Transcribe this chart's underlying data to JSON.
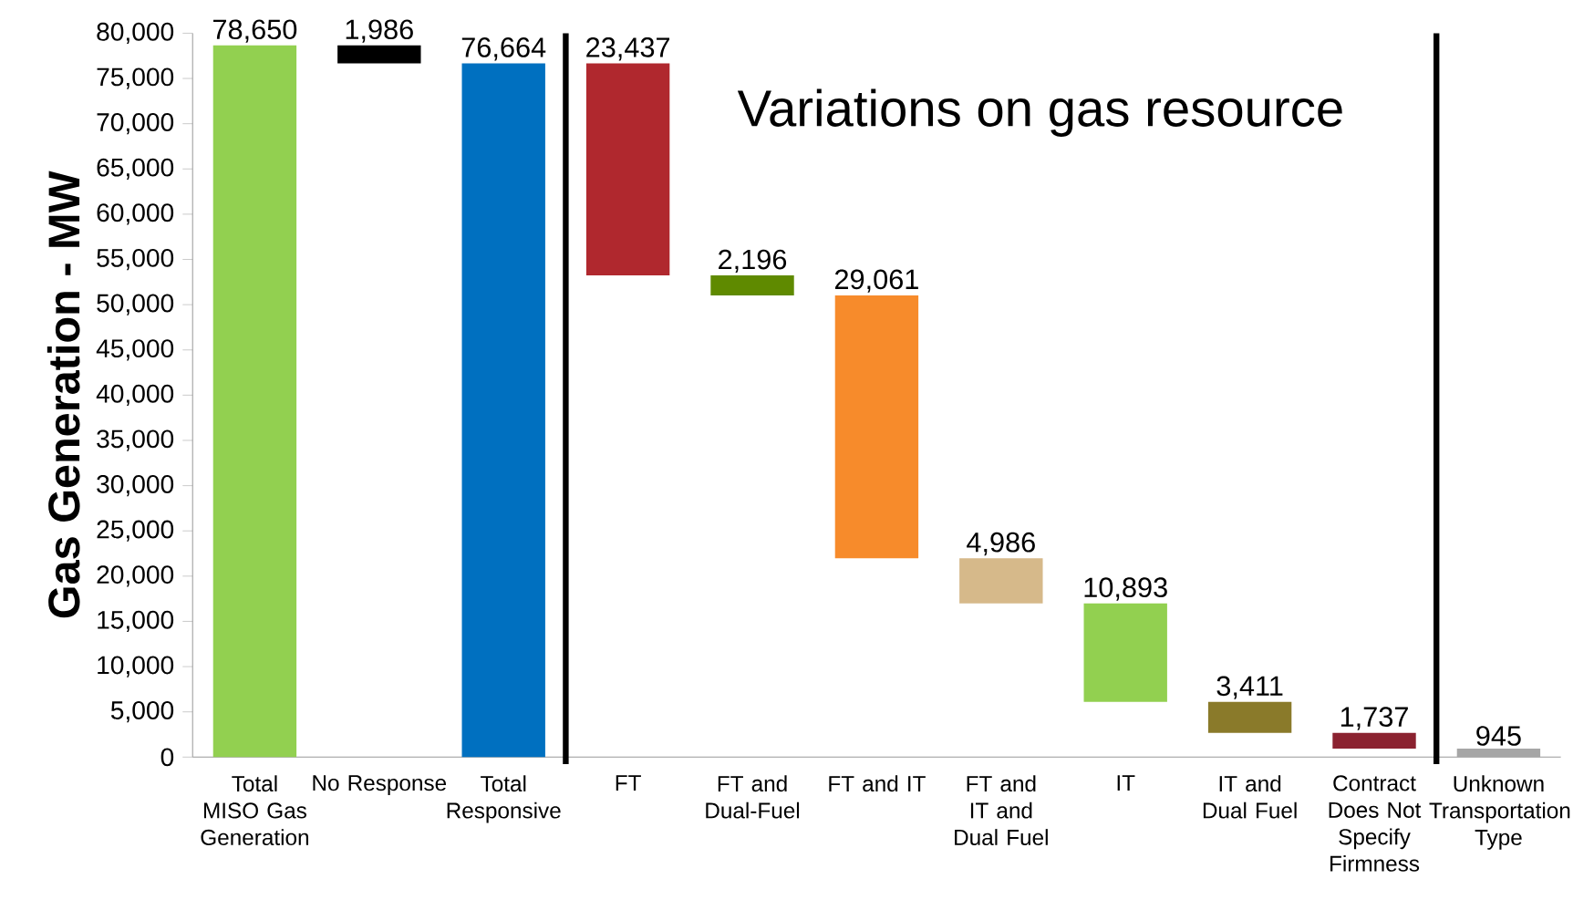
{
  "chart_data": {
    "type": "bar",
    "ylabel": "Gas Generation - MW",
    "annotations": [
      "Variations on gas resource"
    ],
    "categories": [
      "Total MISO Gas Generation",
      "No Response",
      "Total Responsive",
      "FT",
      "FT and Dual-Fuel",
      "FT and IT",
      "FT and IT and Dual Fuel",
      "IT",
      "IT and Dual Fuel",
      "Contract Does Not Specify Firmness",
      "Unknown Transportation Type"
    ],
    "values": [
      78650,
      1986,
      76664,
      23437,
      2196,
      29061,
      4986,
      10893,
      3411,
      1737,
      945
    ],
    "base": [
      0,
      76664,
      0,
      53227,
      51031,
      21970,
      16984,
      6091,
      2680,
      943,
      0
    ],
    "value_labels": [
      "78,650",
      "1,986",
      "76,664",
      "23,437",
      "2,196",
      "29,061",
      "4,986",
      "10,893",
      "3,411",
      "1,737",
      "945"
    ],
    "colors": [
      "#92d050",
      "#000000",
      "#0070c0",
      "#b0282e",
      "#5f8a00",
      "#f78b2b",
      "#d6b98a",
      "#92d050",
      "#8a7a2a",
      "#8b2230",
      "#a6a6a6"
    ],
    "ylim": [
      0,
      80000
    ],
    "yticks": [
      {
        "value": 0,
        "label": "0"
      },
      {
        "value": 5000,
        "label": "5,000"
      },
      {
        "value": 10000,
        "label": "10,000"
      },
      {
        "value": 15000,
        "label": "15,000"
      },
      {
        "value": 20000,
        "label": "20,000"
      },
      {
        "value": 25000,
        "label": "25,000"
      },
      {
        "value": 30000,
        "label": "30,000"
      },
      {
        "value": 35000,
        "label": "35,000"
      },
      {
        "value": 40000,
        "label": "40,000"
      },
      {
        "value": 45000,
        "label": "45,000"
      },
      {
        "value": 50000,
        "label": "50,000"
      },
      {
        "value": 55000,
        "label": "55,000"
      },
      {
        "value": 60000,
        "label": "60,000"
      },
      {
        "value": 65000,
        "label": "65,000"
      },
      {
        "value": 70000,
        "label": "70,000"
      },
      {
        "value": 75000,
        "label": "75,000"
      },
      {
        "value": 80000,
        "label": "80,000"
      }
    ],
    "grid": false
  }
}
